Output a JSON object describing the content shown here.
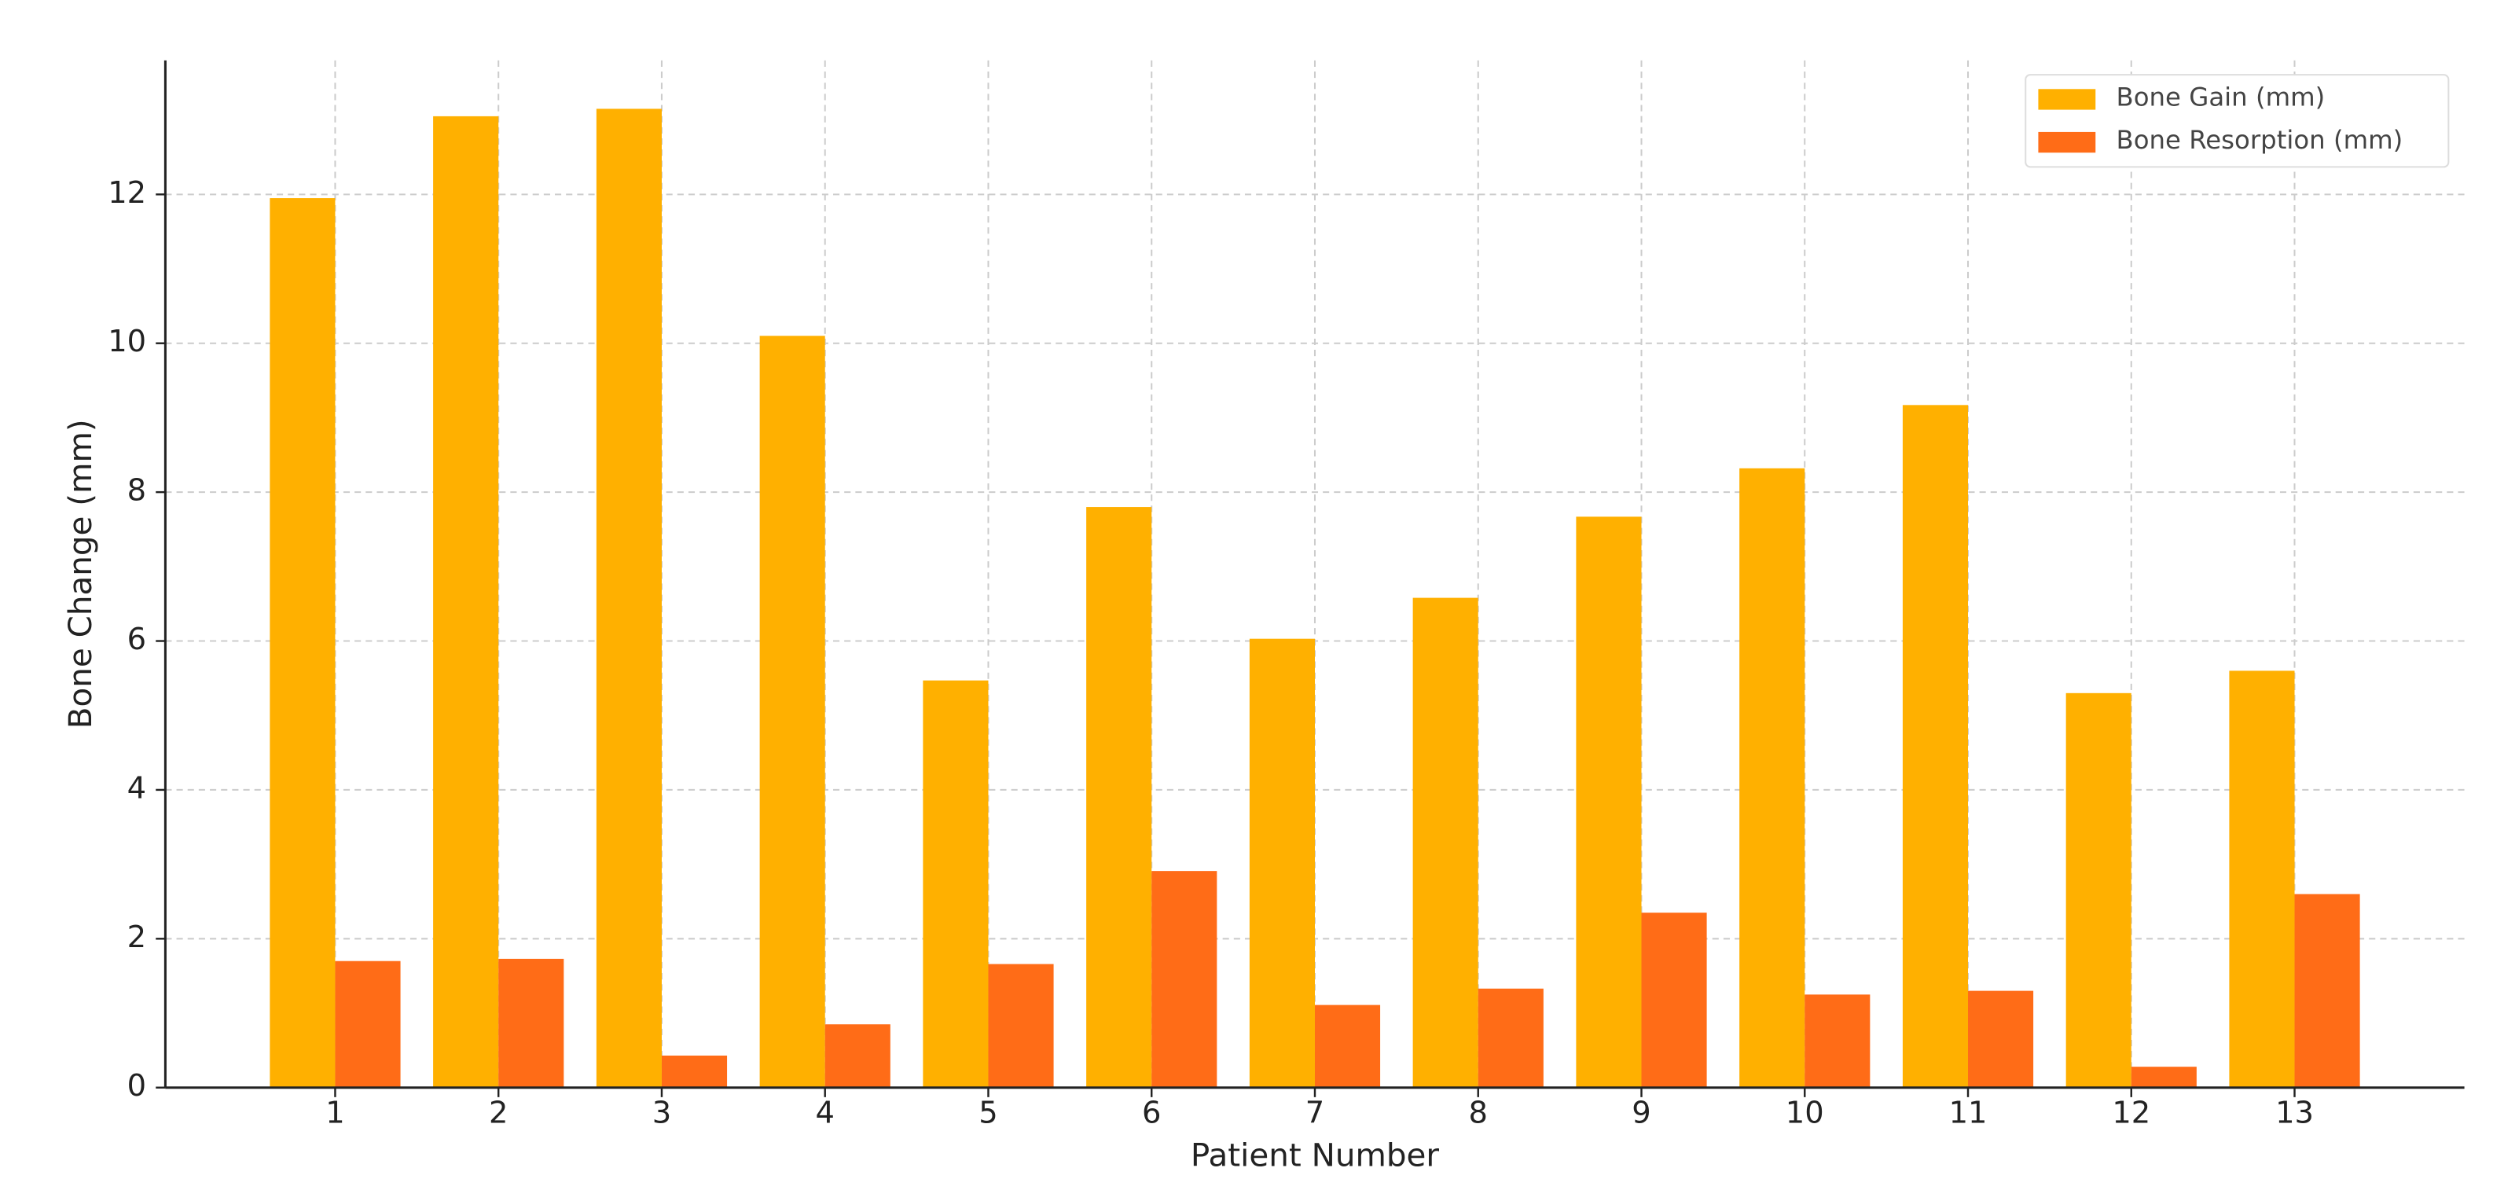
{
  "chart_data": {
    "type": "bar",
    "xlabel": "Patient Number",
    "ylabel": "Bone Change (mm)",
    "x": [
      1,
      2,
      3,
      4,
      5,
      6,
      7,
      8,
      9,
      10,
      11,
      12,
      13
    ],
    "xlim": [
      -0.04,
      14.04
    ],
    "xticks": [
      1,
      2,
      3,
      4,
      5,
      6,
      7,
      8,
      9,
      10,
      11,
      12,
      13
    ],
    "ylim": [
      0,
      13.8
    ],
    "yticks": [
      0,
      2,
      4,
      6,
      8,
      10,
      12
    ],
    "grid": true,
    "legend": "upper right",
    "series": [
      {
        "name": "Bone Gain (mm)",
        "color": "#ffb000",
        "values": [
          11.95,
          13.05,
          13.15,
          10.1,
          5.47,
          7.8,
          6.03,
          6.58,
          7.67,
          8.32,
          9.17,
          5.3,
          5.6
        ]
      },
      {
        "name": "Bone Resorption (mm)",
        "color": "#ff6c17",
        "values": [
          1.7,
          1.73,
          0.43,
          0.85,
          1.66,
          2.91,
          1.11,
          1.33,
          2.35,
          1.25,
          1.3,
          0.28,
          2.6
        ]
      }
    ]
  }
}
